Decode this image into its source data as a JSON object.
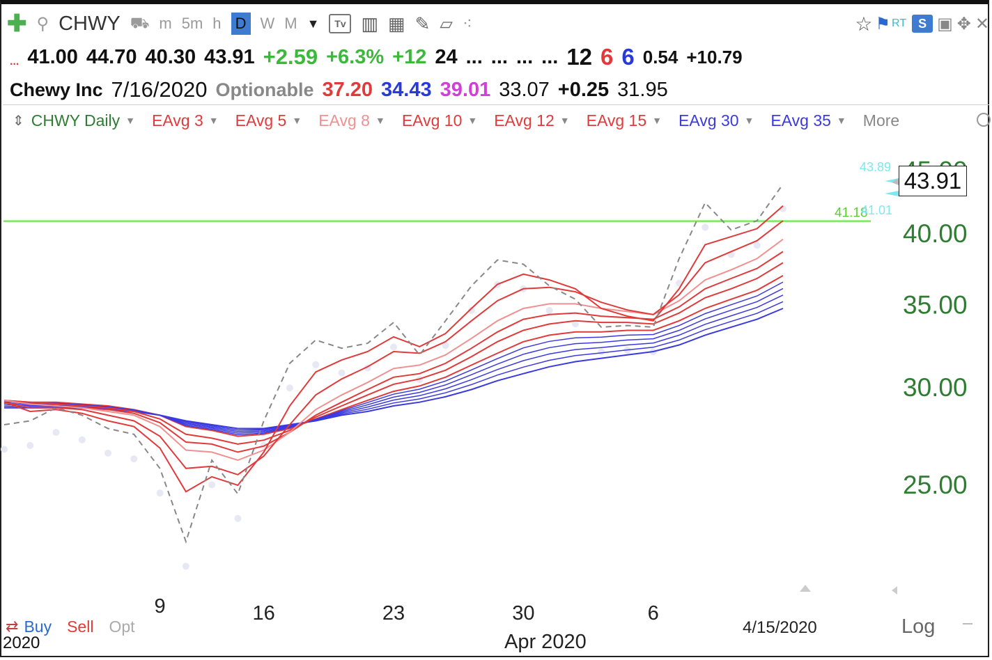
{
  "toolbar": {
    "ticker": "CHWY",
    "items": [
      "m",
      "5m",
      "h",
      "D",
      "W",
      "M"
    ],
    "tv_label": "Tv",
    "right_text": "RT",
    "s_label": "S"
  },
  "quote": {
    "dots_left": "...",
    "open": "41.00",
    "high": "44.70",
    "low": "40.30",
    "last": "43.91",
    "change": "+2.59",
    "change_pct": "+6.3%",
    "f1": "+12",
    "f2": "24",
    "f3": "...",
    "f4": "...",
    "f5": "...",
    "f6": "...",
    "f7": "12",
    "f8": "6",
    "f9": "6",
    "f10": "0.54",
    "f11": "+10.79"
  },
  "info": {
    "name": "Chewy Inc",
    "date": "7/16/2020",
    "optionable": "Optionable",
    "v1": "37.20",
    "v2": "34.43",
    "v3": "39.01",
    "v4": "33.07",
    "v5": "+0.25",
    "v6": "31.95"
  },
  "legend": {
    "main": "CHWY Daily",
    "items": [
      {
        "label": "EAvg 3",
        "color": "#e03a3a"
      },
      {
        "label": "EAvg 5",
        "color": "#e03a3a"
      },
      {
        "label": "EAvg 8",
        "color": "#f09090"
      },
      {
        "label": "EAvg 10",
        "color": "#e03a3a"
      },
      {
        "label": "EAvg 12",
        "color": "#e03a3a"
      },
      {
        "label": "EAvg 15",
        "color": "#e03a3a"
      },
      {
        "label": "EAvg 30",
        "color": "#3a3ae0"
      },
      {
        "label": "EAvg 35",
        "color": "#3a3ae0"
      }
    ],
    "more": "More"
  },
  "bottom": {
    "buy": "Buy",
    "sell": "Sell",
    "opt": "Opt",
    "year": "2020",
    "month": "Apr 2020",
    "date_corner": "4/15/2020",
    "log": "Log"
  },
  "chart_data": {
    "type": "line",
    "title": "",
    "xlabel": "",
    "ylabel": "",
    "log_scale": true,
    "ylim": [
      21,
      45.5
    ],
    "y_ticks": [
      "25.00",
      "30.00",
      "35.00",
      "40.00",
      "45.00"
    ],
    "x_tick_labels": [
      {
        "index": 6,
        "label": "9"
      },
      {
        "index": 10,
        "label": "16"
      },
      {
        "index": 15,
        "label": "23"
      },
      {
        "index": 20,
        "label": "30"
      },
      {
        "index": 25,
        "label": "6"
      }
    ],
    "gv_line": {
      "value": 41.18,
      "label": "41.18",
      "color": "#7bea5a"
    },
    "right_labels": [
      {
        "value": 43.89,
        "label": "43.89",
        "color": "#7de8f0"
      },
      {
        "value": 41.01,
        "label": "41.01",
        "color": "#7de8f0"
      }
    ],
    "last_price": "43.91",
    "grid": false,
    "series": [
      {
        "name": "CHWY Daily",
        "color": "#888888",
        "dash": true,
        "values": [
          28.0,
          28.2,
          28.9,
          28.5,
          27.8,
          27.5,
          25.8,
          22.5,
          26.2,
          24.6,
          28.2,
          31.4,
          32.8,
          32.3,
          32.6,
          33.9,
          31.9,
          34.0,
          36.3,
          38.1,
          37.8,
          36.3,
          35.4,
          33.6,
          33.7,
          33.6,
          38.2,
          42.4,
          40.3,
          41.0,
          43.91
        ]
      },
      {
        "name": "EAvg 3",
        "color": "#e03a3a",
        "values": [
          29.2,
          28.7,
          28.8,
          28.6,
          28.2,
          27.9,
          26.8,
          24.7,
          25.4,
          25.0,
          26.6,
          29.0,
          30.9,
          31.6,
          32.1,
          33.0,
          32.4,
          33.2,
          34.8,
          36.4,
          37.1,
          36.7,
          36.1,
          34.8,
          34.3,
          34.0,
          36.1,
          39.2,
          39.8,
          40.4,
          42.15
        ]
      },
      {
        "name": "EAvg 5",
        "color": "#e03a3a",
        "values": [
          29.2,
          28.9,
          28.9,
          28.8,
          28.5,
          28.2,
          27.4,
          25.8,
          25.9,
          25.5,
          26.4,
          28.0,
          29.6,
          30.5,
          31.2,
          32.1,
          32.0,
          32.7,
          34.0,
          35.3,
          36.1,
          36.2,
          35.9,
          35.2,
          34.7,
          34.4,
          35.7,
          37.9,
          38.7,
          39.5,
          41.0
        ]
      },
      {
        "name": "EAvg 8",
        "color": "#f09090",
        "values": [
          29.3,
          29.1,
          29.0,
          28.9,
          28.7,
          28.5,
          27.9,
          26.7,
          26.6,
          26.2,
          26.7,
          27.6,
          28.8,
          29.6,
          30.3,
          31.1,
          31.3,
          31.9,
          32.9,
          34.0,
          34.8,
          35.1,
          35.1,
          34.8,
          34.6,
          34.4,
          35.3,
          36.7,
          37.4,
          38.2,
          39.6
        ]
      },
      {
        "name": "EAvg 10",
        "color": "#e03a3a",
        "values": [
          29.3,
          29.1,
          29.0,
          28.9,
          28.8,
          28.6,
          28.1,
          27.1,
          27.0,
          26.6,
          26.9,
          27.6,
          28.5,
          29.2,
          29.9,
          30.6,
          30.8,
          31.4,
          32.3,
          33.3,
          34.1,
          34.4,
          34.5,
          34.3,
          34.2,
          34.1,
          34.9,
          36.1,
          36.8,
          37.5,
          38.7
        ]
      },
      {
        "name": "EAvg 12",
        "color": "#e03a3a",
        "values": [
          29.3,
          29.2,
          29.1,
          29.0,
          28.9,
          28.7,
          28.3,
          27.5,
          27.3,
          27.0,
          27.2,
          27.7,
          28.4,
          29.0,
          29.6,
          30.2,
          30.5,
          31.0,
          31.8,
          32.7,
          33.4,
          33.8,
          34.0,
          33.9,
          33.9,
          33.8,
          34.5,
          35.5,
          36.1,
          36.8,
          37.9
        ]
      },
      {
        "name": "EAvg 15",
        "color": "#e03a3a",
        "values": [
          29.3,
          29.2,
          29.2,
          29.1,
          29.0,
          28.8,
          28.5,
          27.9,
          27.7,
          27.4,
          27.5,
          27.8,
          28.3,
          28.8,
          29.3,
          29.8,
          30.1,
          30.6,
          31.3,
          32.0,
          32.7,
          33.1,
          33.3,
          33.3,
          33.4,
          33.4,
          34.0,
          34.8,
          35.4,
          36.0,
          37.0
        ]
      },
      {
        "name": "EAvg 30",
        "color": "#3a3ae0",
        "values": [
          28.9,
          28.9,
          28.9,
          28.9,
          28.8,
          28.7,
          28.5,
          28.2,
          28.0,
          27.8,
          27.8,
          28.0,
          28.2,
          28.5,
          28.7,
          29.0,
          29.2,
          29.5,
          29.9,
          30.4,
          30.8,
          31.2,
          31.5,
          31.7,
          31.9,
          32.1,
          32.5,
          33.1,
          33.6,
          34.1,
          34.8
        ]
      },
      {
        "name": "EAvg 35",
        "color": "#3a3ae0",
        "values": [
          28.9,
          28.9,
          28.9,
          28.9,
          28.8,
          28.7,
          28.5,
          28.2,
          28.0,
          27.8,
          27.8,
          27.9,
          28.1,
          28.4,
          28.6,
          28.8,
          29.0,
          29.3,
          29.6,
          30.0,
          30.4,
          30.7,
          30.9,
          31.1,
          31.3,
          31.5,
          31.9,
          32.4,
          32.9,
          33.4,
          34.0
        ]
      }
    ]
  }
}
